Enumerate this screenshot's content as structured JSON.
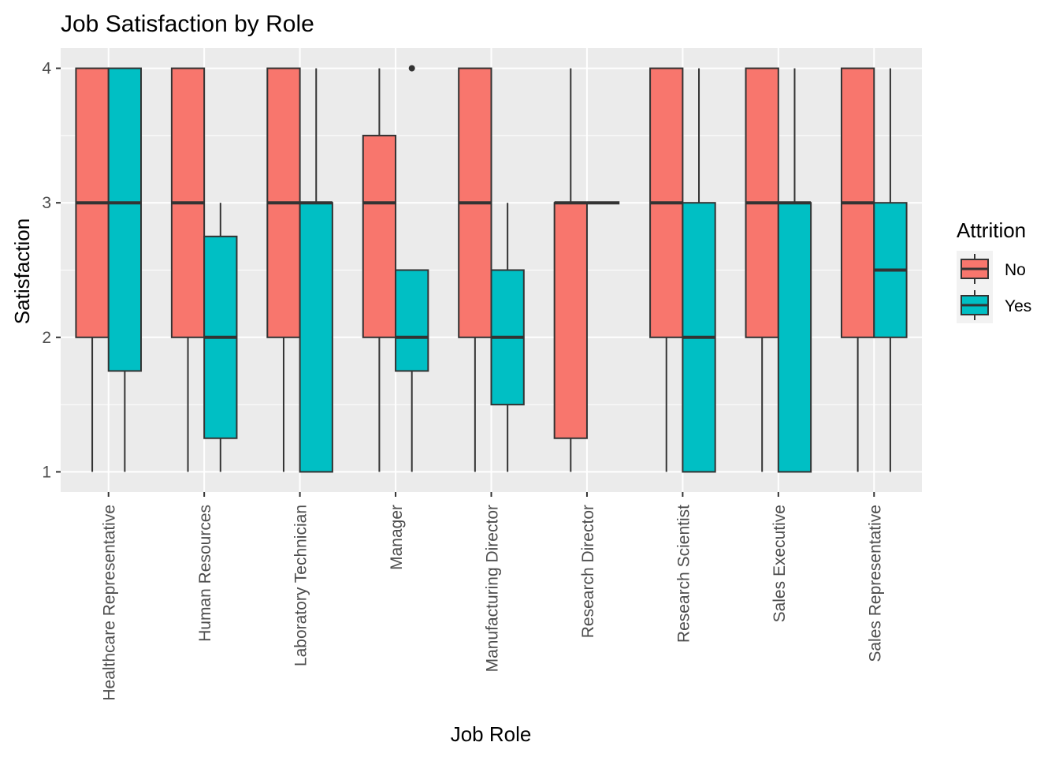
{
  "chart_data": {
    "type": "boxplot",
    "title": "Job Satisfaction by Role",
    "xlabel": "Job Role",
    "ylabel": "Satisfaction",
    "ylim": [
      0.85,
      4.15
    ],
    "yticks": [
      "1",
      "2",
      "3",
      "4"
    ],
    "grid": true,
    "legend": {
      "title": "Attrition",
      "placement": "right",
      "entries": [
        {
          "name": "No",
          "color": "#F8766D"
        },
        {
          "name": "Yes",
          "color": "#00BFC4"
        }
      ]
    },
    "categories": [
      "Healthcare Representative",
      "Human Resources",
      "Laboratory Technician",
      "Manager",
      "Manufacturing Director",
      "Research Director",
      "Research Scientist",
      "Sales Executive",
      "Sales Representative"
    ],
    "series": [
      {
        "name": "No",
        "color": "#F8766D",
        "boxes": [
          {
            "min": 1,
            "q1": 2,
            "median": 3,
            "q3": 4,
            "max": 4,
            "outliers": []
          },
          {
            "min": 1,
            "q1": 2,
            "median": 3,
            "q3": 4,
            "max": 4,
            "outliers": []
          },
          {
            "min": 1,
            "q1": 2,
            "median": 3,
            "q3": 4,
            "max": 4,
            "outliers": []
          },
          {
            "min": 1,
            "q1": 2,
            "median": 3,
            "q3": 3.5,
            "max": 4,
            "outliers": []
          },
          {
            "min": 1,
            "q1": 2,
            "median": 3,
            "q3": 4,
            "max": 4,
            "outliers": []
          },
          {
            "min": 1,
            "q1": 1.25,
            "median": 3,
            "q3": 3,
            "max": 4,
            "outliers": []
          },
          {
            "min": 1,
            "q1": 2,
            "median": 3,
            "q3": 4,
            "max": 4,
            "outliers": []
          },
          {
            "min": 1,
            "q1": 2,
            "median": 3,
            "q3": 4,
            "max": 4,
            "outliers": []
          },
          {
            "min": 1,
            "q1": 2,
            "median": 3,
            "q3": 4,
            "max": 4,
            "outliers": []
          }
        ]
      },
      {
        "name": "Yes",
        "color": "#00BFC4",
        "boxes": [
          {
            "min": 1,
            "q1": 1.75,
            "median": 3,
            "q3": 4,
            "max": 4,
            "outliers": []
          },
          {
            "min": 1,
            "q1": 1.25,
            "median": 2,
            "q3": 2.75,
            "max": 3,
            "outliers": []
          },
          {
            "min": 1,
            "q1": 1,
            "median": 3,
            "q3": 3,
            "max": 4,
            "outliers": []
          },
          {
            "min": 1,
            "q1": 1.75,
            "median": 2,
            "q3": 2.5,
            "max": 2.5,
            "outliers": [
              4
            ]
          },
          {
            "min": 1,
            "q1": 1.5,
            "median": 2,
            "q3": 2.5,
            "max": 3,
            "outliers": []
          },
          {
            "min": 3,
            "q1": 3,
            "median": 3,
            "q3": 3,
            "max": 3,
            "outliers": []
          },
          {
            "min": 1,
            "q1": 1,
            "median": 2,
            "q3": 3,
            "max": 4,
            "outliers": []
          },
          {
            "min": 1,
            "q1": 1,
            "median": 3,
            "q3": 3,
            "max": 4,
            "outliers": []
          },
          {
            "min": 1,
            "q1": 2,
            "median": 2.5,
            "q3": 3,
            "max": 4,
            "outliers": []
          }
        ]
      }
    ]
  }
}
